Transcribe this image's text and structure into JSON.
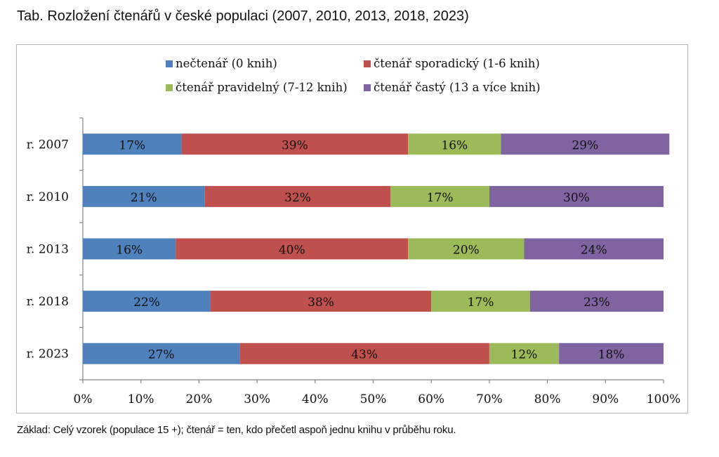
{
  "title": "Tab. Rozložení čtenářů v české populaci (2007, 2010, 2013, 2018, 2023)",
  "footnote": "Základ: Celý vzorek  (populace 15 +); čtenář = ten,  kdo přečetl aspoň jednu knihu v průběhu roku.",
  "chart_data": {
    "type": "bar",
    "orientation": "horizontal",
    "stacked": "percent",
    "title": "Tab. Rozložení čtenářů v české populaci (2007, 2010, 2013, 2018, 2023)",
    "xlabel": "",
    "ylabel": "",
    "xlim": [
      0,
      100
    ],
    "x_ticks": [
      "0%",
      "10%",
      "20%",
      "30%",
      "40%",
      "50%",
      "60%",
      "70%",
      "80%",
      "90%",
      "100%"
    ],
    "grid": false,
    "legend_position": "top",
    "categories": [
      "r. 2007",
      "r. 2010",
      "r. 2013",
      "r. 2018",
      "r. 2023"
    ],
    "series": [
      {
        "name": "nečtenář (0 knih)",
        "color": "#4f81bd",
        "values": [
          17,
          21,
          16,
          22,
          27
        ]
      },
      {
        "name": "čtenář sporadický (1-6 knih)",
        "color": "#c0504d",
        "values": [
          39,
          32,
          40,
          38,
          43
        ]
      },
      {
        "name": "čtenář pravidelný (7-12 knih)",
        "color": "#9bbb59",
        "values": [
          16,
          17,
          20,
          17,
          12
        ]
      },
      {
        "name": "čtenář častý (13 a více knih)",
        "color": "#8064a2",
        "values": [
          29,
          30,
          24,
          23,
          18
        ]
      }
    ]
  }
}
